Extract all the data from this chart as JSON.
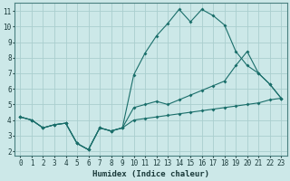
{
  "xlabel": "Humidex (Indice chaleur)",
  "bg_color": "#cce8e8",
  "grid_color": "#aacece",
  "line_color": "#1a6e6a",
  "xlim": [
    -0.5,
    23.5
  ],
  "ylim": [
    1.7,
    11.5
  ],
  "xticks": [
    0,
    1,
    2,
    3,
    4,
    5,
    6,
    7,
    8,
    9,
    10,
    11,
    12,
    13,
    14,
    15,
    16,
    17,
    18,
    19,
    20,
    21,
    22,
    23
  ],
  "yticks": [
    2,
    3,
    4,
    5,
    6,
    7,
    8,
    9,
    10,
    11
  ],
  "line1_x": [
    0,
    1,
    2,
    3,
    4,
    5,
    6,
    7,
    8,
    9,
    10,
    11,
    12,
    13,
    14,
    15,
    16,
    17,
    18,
    19,
    20,
    21,
    22,
    23
  ],
  "line1_y": [
    4.2,
    4.0,
    3.5,
    3.7,
    3.8,
    2.5,
    2.1,
    3.5,
    3.3,
    3.5,
    4.0,
    4.1,
    4.2,
    4.3,
    4.4,
    4.5,
    4.6,
    4.7,
    4.8,
    4.9,
    5.0,
    5.1,
    5.3,
    5.4
  ],
  "line2_x": [
    0,
    1,
    2,
    3,
    4,
    5,
    6,
    7,
    8,
    9,
    10,
    11,
    12,
    13,
    14,
    15,
    16,
    17,
    18,
    19,
    20,
    21,
    22,
    23
  ],
  "line2_y": [
    4.2,
    4.0,
    3.5,
    3.7,
    3.8,
    2.5,
    2.1,
    3.5,
    3.3,
    3.5,
    4.8,
    5.0,
    5.2,
    5.0,
    5.3,
    5.6,
    5.9,
    6.2,
    6.5,
    7.5,
    8.4,
    7.0,
    6.3,
    5.4
  ],
  "line3_x": [
    0,
    1,
    2,
    3,
    4,
    5,
    6,
    7,
    8,
    9,
    10,
    11,
    12,
    13,
    14,
    15,
    16,
    17,
    18,
    19,
    20,
    21,
    22,
    23
  ],
  "line3_y": [
    4.2,
    4.0,
    3.5,
    3.7,
    3.8,
    2.5,
    2.1,
    3.5,
    3.3,
    3.5,
    6.9,
    8.3,
    9.4,
    10.2,
    11.1,
    10.3,
    11.1,
    10.7,
    10.1,
    8.4,
    7.5,
    7.0,
    6.3,
    5.4
  ]
}
